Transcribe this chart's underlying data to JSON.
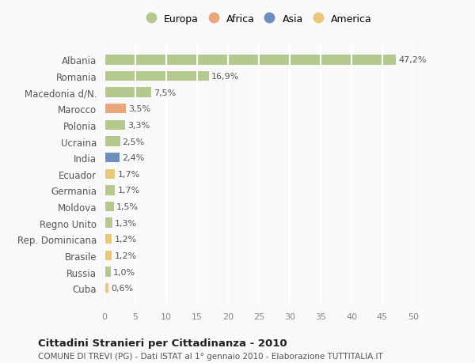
{
  "countries": [
    "Albania",
    "Romania",
    "Macedonia d/N.",
    "Marocco",
    "Polonia",
    "Ucraina",
    "India",
    "Ecuador",
    "Germania",
    "Moldova",
    "Regno Unito",
    "Rep. Dominicana",
    "Brasile",
    "Russia",
    "Cuba"
  ],
  "values": [
    47.2,
    16.9,
    7.5,
    3.5,
    3.3,
    2.5,
    2.4,
    1.7,
    1.7,
    1.5,
    1.3,
    1.2,
    1.2,
    1.0,
    0.6
  ],
  "labels": [
    "47,2%",
    "16,9%",
    "7,5%",
    "3,5%",
    "3,3%",
    "2,5%",
    "2,4%",
    "1,7%",
    "1,7%",
    "1,5%",
    "1,3%",
    "1,2%",
    "1,2%",
    "1,0%",
    "0,6%"
  ],
  "colors": [
    "#b5c98e",
    "#b5c98e",
    "#b5c98e",
    "#e8a87c",
    "#b5c98e",
    "#b5c98e",
    "#6e8fbd",
    "#e8c97c",
    "#b5c98e",
    "#b5c98e",
    "#b5c98e",
    "#e8c97c",
    "#e8c97c",
    "#b5c98e",
    "#e8c97c"
  ],
  "legend_labels": [
    "Europa",
    "Africa",
    "Asia",
    "America"
  ],
  "legend_colors": [
    "#b5c98e",
    "#e8a87c",
    "#6e8fbd",
    "#e8c97c"
  ],
  "title": "Cittadini Stranieri per Cittadinanza - 2010",
  "subtitle": "COMUNE DI TREVI (PG) - Dati ISTAT al 1° gennaio 2010 - Elaborazione TUTTITALIA.IT",
  "xlim": [
    0,
    50
  ],
  "xticks": [
    0,
    5,
    10,
    15,
    20,
    25,
    30,
    35,
    40,
    45,
    50
  ],
  "background_color": "#f9f9f9",
  "grid_color": "#ffffff",
  "bar_height": 0.6
}
